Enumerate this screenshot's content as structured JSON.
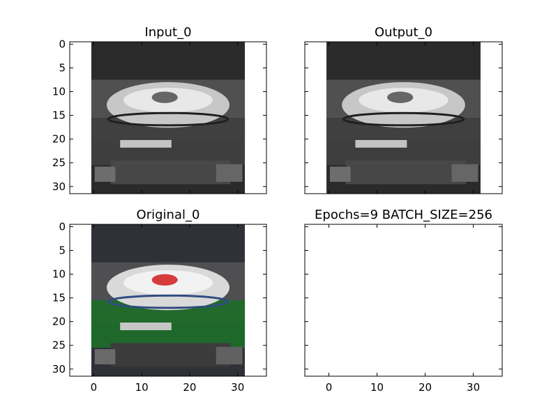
{
  "chart_data": [
    {
      "type": "image",
      "title": "Input_0",
      "xlim": [
        -5,
        36
      ],
      "ylim": [
        31.5,
        -0.5
      ],
      "xticks": [
        0,
        10,
        20,
        30
      ],
      "yticks": [
        0,
        5,
        10,
        15,
        20,
        25,
        30
      ],
      "show_xtick_labels": false,
      "show_ytick_labels": true,
      "image_extent": [
        -0.5,
        31.5,
        31.5,
        -0.5
      ],
      "palette": "grayscale"
    },
    {
      "type": "image",
      "title": "Output_0",
      "xlim": [
        -5,
        36
      ],
      "ylim": [
        31.5,
        -0.5
      ],
      "xticks": [
        0,
        10,
        20,
        30
      ],
      "yticks": [
        0,
        5,
        10,
        15,
        20,
        25,
        30
      ],
      "show_xtick_labels": false,
      "show_ytick_labels": false,
      "image_extent": [
        -0.5,
        31.5,
        31.5,
        -0.5
      ],
      "palette": "grayscale"
    },
    {
      "type": "image",
      "title": "Original_0",
      "xlim": [
        -5,
        36
      ],
      "ylim": [
        31.5,
        -0.5
      ],
      "xticks": [
        0,
        10,
        20,
        30
      ],
      "yticks": [
        0,
        5,
        10,
        15,
        20,
        25,
        30
      ],
      "show_xtick_labels": true,
      "show_ytick_labels": true,
      "image_extent": [
        -0.5,
        31.5,
        31.5,
        -0.5
      ],
      "palette": "color"
    },
    {
      "type": "empty",
      "title": "Epochs=9 BATCH_SIZE=256",
      "xlim": [
        -5,
        36
      ],
      "ylim": [
        31.5,
        -0.5
      ],
      "xticks": [
        0,
        10,
        20,
        30
      ],
      "yticks": [
        0,
        5,
        10,
        15,
        20,
        25,
        30
      ],
      "show_xtick_labels": true,
      "show_ytick_labels": false
    }
  ],
  "colors": {
    "background": "#ffffff",
    "axis": "#000000",
    "gray_dark": "#2a2a2a",
    "gray_mid": "#6b6b6b",
    "gray_light": "#c7c7c7",
    "gray_white": "#e8e8e8",
    "original_dark": "#2f3137",
    "original_green": "#1f6b2a",
    "original_white": "#d9d9d9",
    "original_red": "#d73b3b",
    "original_blue": "#314c80"
  }
}
